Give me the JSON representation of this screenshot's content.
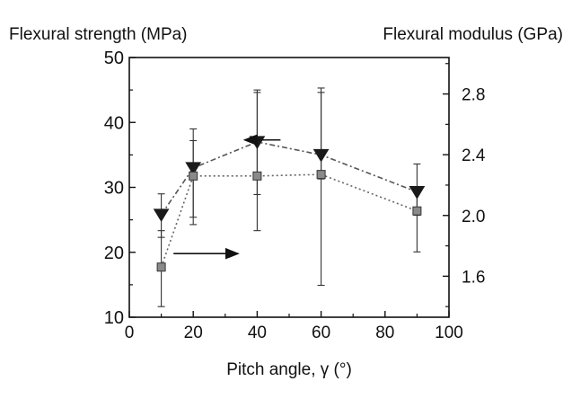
{
  "chart_data": {
    "type": "line",
    "x_label": "Pitch angle, γ (°)",
    "y_left_label": "Flexural strength (MPa)",
    "y_right_label": "Flexural modulus (GPa)",
    "x_range": [
      0,
      100
    ],
    "x_ticks": [
      "0",
      "20",
      "40",
      "60",
      "80",
      "100"
    ],
    "y_left_range": [
      10,
      50
    ],
    "y_left_ticks": [
      "10",
      "20",
      "30",
      "40",
      "50"
    ],
    "y_right_range": [
      1.33,
      3.04
    ],
    "y_right_ticks": [
      "1.6",
      "2.0",
      "2.4",
      "2.8"
    ],
    "grid": false,
    "series": [
      {
        "axis": "left",
        "marker": "triangle-down",
        "line_style": "dash-dot",
        "x": [
          10,
          20,
          40,
          60,
          90
        ],
        "y": [
          25.8,
          33.0,
          37.0,
          35.0,
          29.3
        ],
        "err_low": [
          22.3,
          25.4,
          28.9,
          31.3,
          25.7
        ],
        "err_high": [
          29.0,
          37.2,
          45.0,
          45.3,
          33.6
        ]
      },
      {
        "axis": "right",
        "marker": "square",
        "line_style": "dotted",
        "x": [
          10,
          20,
          40,
          60,
          90
        ],
        "y": [
          1.66,
          2.26,
          2.26,
          2.27,
          2.03
        ],
        "err_low": [
          1.4,
          1.94,
          1.9,
          1.54,
          1.76
        ],
        "err_high": [
          1.9,
          2.57,
          2.81,
          2.81,
          2.19
        ]
      }
    ],
    "annotations": [
      {
        "arrow": "left",
        "points_to_axis": "left",
        "near_x": 40
      },
      {
        "arrow": "right",
        "points_to_axis": "right",
        "near_x": 20
      }
    ]
  },
  "colors": {
    "axis": "#111111",
    "series_strength": "#555555",
    "series_modulus": "#666666",
    "marker_fill": "#8a8a8a"
  }
}
